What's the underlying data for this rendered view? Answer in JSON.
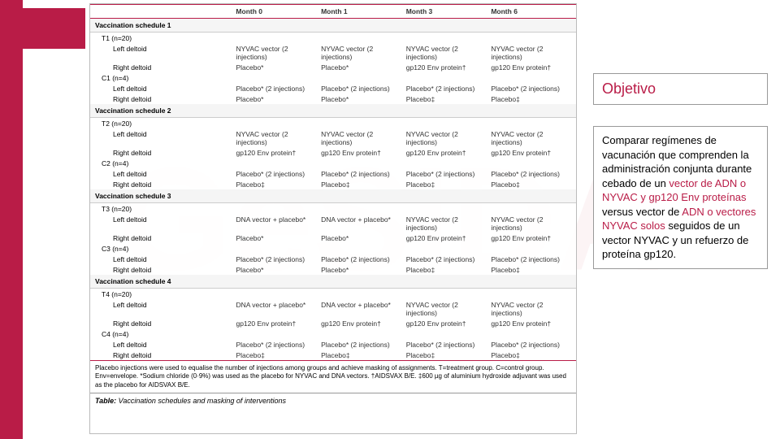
{
  "watermark": "GeSIDA",
  "sidebar": {
    "title": "Objetivo",
    "body_parts": [
      {
        "t": "Comparar regímenes de vacunación que comprenden la administración conjunta durante cebado de un ",
        "hl": false
      },
      {
        "t": "vector de ADN o NYVAC y gp120 Env proteínas ",
        "hl": true
      },
      {
        "t": "versus vector de ",
        "hl": false
      },
      {
        "t": "ADN o vectores NYVAC solos ",
        "hl": true
      },
      {
        "t": "seguidos de un vector NYVAC y un refuerzo de proteína gp120.",
        "hl": false
      }
    ]
  },
  "table": {
    "columns": [
      "Month 0",
      "Month 1",
      "Month 3",
      "Month 6"
    ],
    "schedules": [
      {
        "title": "Vaccination schedule 1",
        "groups": [
          {
            "name": "T1 (n=20)",
            "rows": [
              {
                "site": "Left deltoid",
                "cells": [
                  "NYVAC vector (2 injections)",
                  "NYVAC vector (2 injections)",
                  "NYVAC vector (2 injections)",
                  "NYVAC vector (2 injections)"
                ]
              },
              {
                "site": "Right deltoid",
                "cells": [
                  "Placebo*",
                  "Placebo*",
                  "gp120 Env protein†",
                  "gp120 Env protein†"
                ]
              }
            ]
          },
          {
            "name": "C1 (n=4)",
            "rows": [
              {
                "site": "Left deltoid",
                "cells": [
                  "Placebo* (2 injections)",
                  "Placebo* (2 injections)",
                  "Placebo* (2 injections)",
                  "Placebo* (2 injections)"
                ]
              },
              {
                "site": "Right deltoid",
                "cells": [
                  "Placebo*",
                  "Placebo*",
                  "Placebo‡",
                  "Placebo‡"
                ]
              }
            ]
          }
        ]
      },
      {
        "title": "Vaccination schedule 2",
        "groups": [
          {
            "name": "T2 (n=20)",
            "rows": [
              {
                "site": "Left deltoid",
                "cells": [
                  "NYVAC vector (2 injections)",
                  "NYVAC vector (2 injections)",
                  "NYVAC vector (2 injections)",
                  "NYVAC vector (2 injections)"
                ]
              },
              {
                "site": "Right deltoid",
                "cells": [
                  "gp120 Env protein†",
                  "gp120 Env protein†",
                  "gp120 Env protein†",
                  "gp120 Env protein†"
                ]
              }
            ]
          },
          {
            "name": "C2 (n=4)",
            "rows": [
              {
                "site": "Left deltoid",
                "cells": [
                  "Placebo* (2 injections)",
                  "Placebo* (2 injections)",
                  "Placebo* (2 injections)",
                  "Placebo* (2 injections)"
                ]
              },
              {
                "site": "Right deltoid",
                "cells": [
                  "Placebo‡",
                  "Placebo‡",
                  "Placebo‡",
                  "Placebo‡"
                ]
              }
            ]
          }
        ]
      },
      {
        "title": "Vaccination schedule 3",
        "groups": [
          {
            "name": "T3 (n=20)",
            "rows": [
              {
                "site": "Left deltoid",
                "cells": [
                  "DNA vector + placebo*",
                  "DNA vector + placebo*",
                  "NYVAC vector (2 injections)",
                  "NYVAC vector (2 injections)"
                ]
              },
              {
                "site": "Right deltoid",
                "cells": [
                  "Placebo*",
                  "Placebo*",
                  "gp120 Env protein†",
                  "gp120 Env protein†"
                ]
              }
            ]
          },
          {
            "name": "C3 (n=4)",
            "rows": [
              {
                "site": "Left deltoid",
                "cells": [
                  "Placebo* (2 injections)",
                  "Placebo* (2 injections)",
                  "Placebo* (2 injections)",
                  "Placebo* (2 injections)"
                ]
              },
              {
                "site": "Right deltoid",
                "cells": [
                  "Placebo*",
                  "Placebo*",
                  "Placebo‡",
                  "Placebo‡"
                ]
              }
            ]
          }
        ]
      },
      {
        "title": "Vaccination schedule 4",
        "groups": [
          {
            "name": "T4 (n=20)",
            "rows": [
              {
                "site": "Left deltoid",
                "cells": [
                  "DNA vector + placebo*",
                  "DNA vector + placebo*",
                  "NYVAC vector (2 injections)",
                  "NYVAC vector (2 injections)"
                ]
              },
              {
                "site": "Right deltoid",
                "cells": [
                  "gp120 Env protein†",
                  "gp120 Env protein†",
                  "gp120 Env protein†",
                  "gp120 Env protein†"
                ]
              }
            ]
          },
          {
            "name": "C4 (n=4)",
            "rows": [
              {
                "site": "Left deltoid",
                "cells": [
                  "Placebo* (2 injections)",
                  "Placebo* (2 injections)",
                  "Placebo* (2 injections)",
                  "Placebo* (2 injections)"
                ]
              },
              {
                "site": "Right deltoid",
                "cells": [
                  "Placebo‡",
                  "Placebo‡",
                  "Placebo‡",
                  "Placebo‡"
                ]
              }
            ]
          }
        ]
      }
    ],
    "footer": "Placebo injections were used to equalise the number of injections among groups and achieve masking of assignments. T=treatment group. C=control group. Env=envelope. *Sodium chloride (0·9%) was used as the placebo for NYVAC and DNA vectors. †AIDSVAX B/E. ‡600 µg of aluminium hydroxide adjuvant was used as the placebo for AIDSVAX B/E.",
    "caption_label": "Table:",
    "caption_text": " Vaccination schedules and masking of interventions"
  }
}
